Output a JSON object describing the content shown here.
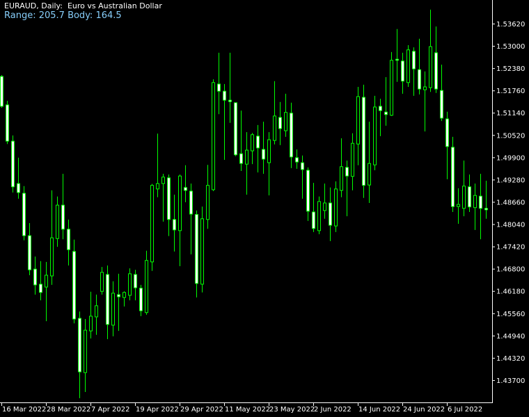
{
  "header": {
    "title": "EURAUD, Daily:  Euro vs Australian Dollar",
    "info": "Range: 205.7 Body: 164.5"
  },
  "colors": {
    "background": "#000000",
    "candle_border": "#00ff00",
    "bear_fill": "#ffffff",
    "bull_fill": "#000000",
    "axis": "#ffffff",
    "info_text": "#87cefa"
  },
  "chart_data": {
    "type": "candlestick",
    "symbol": "EURAUD",
    "timeframe": "Daily",
    "grid": false,
    "ylim": [
      1.43,
      1.542
    ],
    "y_ticks": [
      "1.53620",
      "1.53000",
      "1.52380",
      "1.51760",
      "1.51140",
      "1.50520",
      "1.49900",
      "1.49280",
      "1.48660",
      "1.48040",
      "1.47420",
      "1.46800",
      "1.46180",
      "1.45560",
      "1.44940",
      "1.44320",
      "1.43700"
    ],
    "x_ticks": [
      {
        "bar": 0,
        "label": "16 Mar 2022"
      },
      {
        "bar": 8,
        "label": "28 Mar 2022"
      },
      {
        "bar": 16,
        "label": "7 Apr 2022"
      },
      {
        "bar": 24,
        "label": "19 Apr 2022"
      },
      {
        "bar": 32,
        "label": "29 Apr 2022"
      },
      {
        "bar": 40,
        "label": "11 May 2022"
      },
      {
        "bar": 48,
        "label": "23 May 2022"
      },
      {
        "bar": 56,
        "label": "2 Jun 2022"
      },
      {
        "bar": 64,
        "label": "14 Jun 2022"
      },
      {
        "bar": 72,
        "label": "24 Jun 2022"
      },
      {
        "bar": 80,
        "label": "6 Jul 2022"
      }
    ],
    "ohlc": [
      [
        1.5215,
        1.5219,
        1.5128,
        1.5132
      ],
      [
        1.5136,
        1.5147,
        1.5027,
        1.5035
      ],
      [
        1.5035,
        1.5051,
        1.4892,
        1.4908
      ],
      [
        1.4917,
        1.4989,
        1.4875,
        1.4892
      ],
      [
        1.489,
        1.491,
        1.4759,
        1.4772
      ],
      [
        1.4772,
        1.4807,
        1.4662,
        1.4677
      ],
      [
        1.4679,
        1.4714,
        1.4608,
        1.4635
      ],
      [
        1.4637,
        1.4701,
        1.4592,
        1.4614
      ],
      [
        1.4629,
        1.4699,
        1.4534,
        1.4662
      ],
      [
        1.466,
        1.4898,
        1.4635,
        1.4766
      ],
      [
        1.4764,
        1.4881,
        1.4741,
        1.4857
      ],
      [
        1.4857,
        1.4944,
        1.4762,
        1.479
      ],
      [
        1.479,
        1.4817,
        1.4689,
        1.4733
      ],
      [
        1.4728,
        1.4761,
        1.4528,
        1.454
      ],
      [
        1.4542,
        1.4561,
        1.432,
        1.4393
      ],
      [
        1.4391,
        1.454,
        1.4337,
        1.4509
      ],
      [
        1.4507,
        1.4616,
        1.4486,
        1.4548
      ],
      [
        1.4546,
        1.4608,
        1.4496,
        1.4577
      ],
      [
        1.4617,
        1.4685,
        1.4608,
        1.467
      ],
      [
        1.4664,
        1.4689,
        1.4484,
        1.4525
      ],
      [
        1.4523,
        1.4645,
        1.4492,
        1.4612
      ],
      [
        1.4608,
        1.4666,
        1.4507,
        1.4602
      ],
      [
        1.46,
        1.4617,
        1.4575,
        1.4614
      ],
      [
        1.4606,
        1.4681,
        1.4592,
        1.4666
      ],
      [
        1.4664,
        1.4677,
        1.4592,
        1.4627
      ],
      [
        1.4626,
        1.4635,
        1.4548,
        1.4563
      ],
      [
        1.4558,
        1.473,
        1.4552,
        1.4703
      ],
      [
        1.4699,
        1.4916,
        1.4674,
        1.4912
      ],
      [
        1.4902,
        1.5056,
        1.4879,
        1.4917
      ],
      [
        1.4917,
        1.4944,
        1.4811,
        1.4935
      ],
      [
        1.4933,
        1.4942,
        1.4771,
        1.4817
      ],
      [
        1.4817,
        1.4886,
        1.4728,
        1.4788
      ],
      [
        1.4786,
        1.4942,
        1.4687,
        1.4938
      ],
      [
        1.4906,
        1.4968,
        1.4865,
        1.4898
      ],
      [
        1.4896,
        1.4917,
        1.472,
        1.4832
      ],
      [
        1.4831,
        1.4842,
        1.46,
        1.4639
      ],
      [
        1.4637,
        1.4853,
        1.4614,
        1.4819
      ],
      [
        1.4817,
        1.4969,
        1.4791,
        1.4912
      ],
      [
        1.49,
        1.5207,
        1.4896,
        1.5198
      ],
      [
        1.5194,
        1.5281,
        1.511,
        1.5174
      ],
      [
        1.5174,
        1.5194,
        1.4983,
        1.5149
      ],
      [
        1.5149,
        1.5281,
        1.5086,
        1.5145
      ],
      [
        1.5142,
        1.5142,
        1.4993,
        1.4997
      ],
      [
        1.5,
        1.512,
        1.4952,
        1.4973
      ],
      [
        1.4971,
        1.506,
        1.4886,
        1.501
      ],
      [
        1.5008,
        1.5058,
        1.4971,
        1.5053
      ],
      [
        1.5049,
        1.508,
        1.4948,
        1.5016
      ],
      [
        1.5012,
        1.5089,
        1.4944,
        1.4985
      ],
      [
        1.4975,
        1.506,
        1.4884,
        1.5039
      ],
      [
        1.5037,
        1.5202,
        1.5026,
        1.5105
      ],
      [
        1.5101,
        1.5144,
        1.5024,
        1.507
      ],
      [
        1.5064,
        1.5167,
        1.5047,
        1.5115
      ],
      [
        1.5113,
        1.5142,
        1.496,
        1.4991
      ],
      [
        1.4989,
        1.5012,
        1.4958,
        1.4977
      ],
      [
        1.4975,
        1.4995,
        1.4875,
        1.4956
      ],
      [
        1.4954,
        1.4962,
        1.4813,
        1.484
      ],
      [
        1.4838,
        1.4919,
        1.4782,
        1.4792
      ],
      [
        1.4786,
        1.4881,
        1.4776,
        1.4867
      ],
      [
        1.4842,
        1.4917,
        1.4819,
        1.4863
      ],
      [
        1.4863,
        1.4906,
        1.4757,
        1.4801
      ],
      [
        1.4799,
        1.4923,
        1.4782,
        1.4902
      ],
      [
        1.4898,
        1.5043,
        1.4879,
        1.4964
      ],
      [
        1.4962,
        1.4981,
        1.4826,
        1.4938
      ],
      [
        1.4937,
        1.5057,
        1.4898,
        1.5029
      ],
      [
        1.5027,
        1.5186,
        1.4968,
        1.5159
      ],
      [
        1.5157,
        1.5192,
        1.4877,
        1.4912
      ],
      [
        1.4913,
        1.5089,
        1.4863,
        1.4973
      ],
      [
        1.4969,
        1.5161,
        1.4954,
        1.513
      ],
      [
        1.5132,
        1.5153,
        1.5049,
        1.512
      ],
      [
        1.5116,
        1.5213,
        1.5078,
        1.5109
      ],
      [
        1.5107,
        1.5283,
        1.5105,
        1.526
      ],
      [
        1.5263,
        1.5347,
        1.52,
        1.526
      ],
      [
        1.5258,
        1.5281,
        1.5167,
        1.5202
      ],
      [
        1.5198,
        1.5302,
        1.5186,
        1.5289
      ],
      [
        1.5285,
        1.5296,
        1.5161,
        1.5236
      ],
      [
        1.5234,
        1.532,
        1.5165,
        1.518
      ],
      [
        1.5178,
        1.5229,
        1.5062,
        1.5186
      ],
      [
        1.5184,
        1.5401,
        1.5172,
        1.5298
      ],
      [
        1.5281,
        1.5354,
        1.5169,
        1.518
      ],
      [
        1.5176,
        1.5248,
        1.5091,
        1.5099
      ],
      [
        1.5097,
        1.5117,
        1.4929,
        1.502
      ],
      [
        1.5018,
        1.5047,
        1.4838,
        1.4853
      ],
      [
        1.4853,
        1.4904,
        1.4805,
        1.4859
      ],
      [
        1.4848,
        1.4981,
        1.4826,
        1.491
      ],
      [
        1.4908,
        1.4942,
        1.4838,
        1.4852
      ],
      [
        1.485,
        1.4917,
        1.4788,
        1.4884
      ],
      [
        1.4882,
        1.4944,
        1.4762,
        1.4848
      ],
      [
        1.4848,
        1.4925,
        1.4819,
        1.4844
      ]
    ]
  }
}
